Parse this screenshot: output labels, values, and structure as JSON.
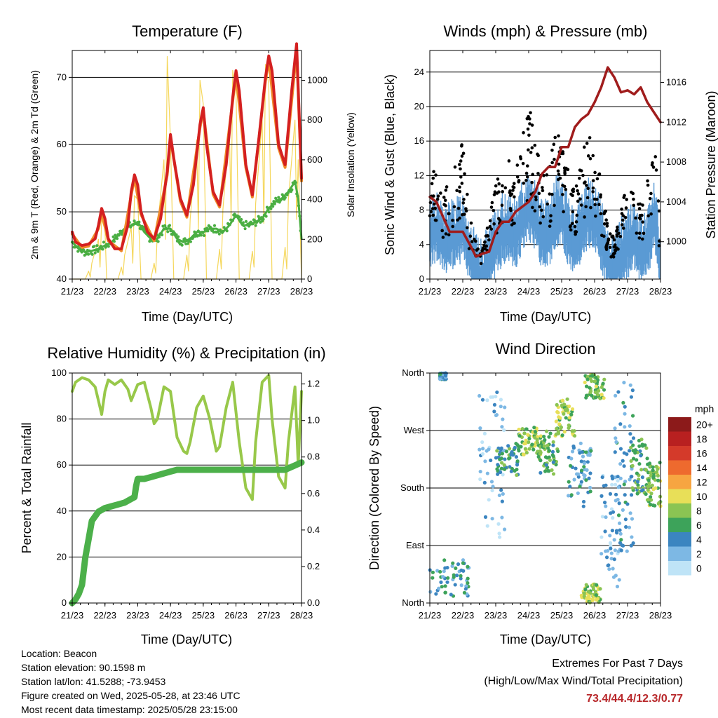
{
  "x_tick_labels": [
    "21/23",
    "22/23",
    "23/23",
    "24/23",
    "25/23",
    "26/23",
    "27/23",
    "28/23"
  ],
  "temperature_panel": {
    "title": "Temperature (F)",
    "xlabel": "Time (Day/UTC)",
    "ylabel_left": "2m & 9m T (Red, Orange) & 2m Td (Green)",
    "ylabel_right": "Solar Insolation (Yellow)"
  },
  "winds_panel": {
    "title": "Winds (mph) & Pressure (mb)",
    "xlabel": "Time (Day/UTC)",
    "ylabel_left": "Sonic Wind & Gust (Blue, Black)",
    "ylabel_right": "Station Pressure (Maroon)"
  },
  "rh_panel": {
    "title": "Relative Humidity (%) & Precipitation (in)",
    "xlabel": "Time (Day/UTC)",
    "ylabel_left": "Percent & Total Rainfall"
  },
  "direction_panel": {
    "title": "Wind Direction",
    "xlabel": "Time (Day/UTC)",
    "ylabel_left": "Direction (Colored By Speed)",
    "legend_title": "mph"
  },
  "info": {
    "location": "Location: Beacon",
    "elevation": "Station elevation: 90.1598 m",
    "latlon": "Station lat/lon: 41.5288; -73.9453",
    "created": "Figure created on Wed, 2025-05-28, at 23:46 UTC",
    "recent": "Most recent data timestamp: 2025/05/28 23:15:00"
  },
  "extremes": {
    "line1": "Extremes For Past 7 Days",
    "line2": "(High/Low/Max Wind/Total Precipitation)",
    "values": "73.4/44.4/12.3/0.77"
  },
  "colors": {
    "temp_2m": "#d42020",
    "temp_9m": "#f08a2a",
    "dewpoint": "#4aae42",
    "solar": "#f5d75c",
    "wind": "#5a9ad4",
    "gust": "#000000",
    "pressure": "#a01c1c",
    "rh": "#98c84a",
    "rain": "#4cb04a"
  },
  "chart_data": [
    {
      "id": "temperature",
      "type": "line",
      "x_unit": "day since 21/23",
      "xlim": [
        0,
        7
      ],
      "ylim": [
        40,
        74
      ],
      "yticks": [
        40,
        50,
        60,
        70
      ],
      "y2lim": [
        0,
        1150
      ],
      "y2ticks": [
        0,
        200,
        400,
        600,
        800,
        1000
      ],
      "series": [
        {
          "key": "t2m",
          "x": [
            0,
            0.1,
            0.3,
            0.5,
            0.7,
            0.8,
            0.9,
            1.0,
            1.1,
            1.3,
            1.5,
            1.7,
            1.8,
            1.9,
            2.0,
            2.1,
            2.3,
            2.5,
            2.7,
            2.9,
            3.0,
            3.1,
            3.3,
            3.5,
            3.7,
            3.9,
            4.0,
            4.1,
            4.3,
            4.5,
            4.7,
            4.9,
            5.0,
            5.1,
            5.3,
            5.5,
            5.7,
            5.9,
            6.0,
            6.1,
            6.3,
            6.5,
            6.7,
            6.85,
            7.0
          ],
          "y": [
            47,
            45.5,
            45,
            45.2,
            46,
            48,
            50.5,
            49,
            46,
            44.5,
            44.5,
            48,
            53,
            55.5,
            54,
            50,
            47,
            46,
            49,
            56,
            61.5,
            58,
            52,
            49.5,
            54,
            63,
            65.5,
            60,
            53,
            51,
            57,
            67,
            71,
            68,
            57,
            52.5,
            61,
            70,
            73.2,
            71,
            60,
            57,
            68,
            75,
            55
          ]
        },
        {
          "key": "t9m",
          "x": [
            0,
            0.3,
            0.5,
            0.8,
            0.9,
            1.1,
            1.5,
            1.8,
            1.9,
            2.1,
            2.5,
            2.9,
            3.0,
            3.3,
            3.5,
            3.9,
            4.0,
            4.3,
            4.5,
            4.9,
            5.0,
            5.3,
            5.5,
            5.9,
            6.0,
            6.3,
            6.5,
            6.85,
            7.0
          ],
          "y": [
            46.7,
            44.7,
            44.9,
            47.5,
            50,
            45.7,
            44.2,
            52.5,
            55,
            49.6,
            45.7,
            55.5,
            61,
            51.6,
            49.2,
            62.5,
            65,
            52.6,
            50.7,
            66.5,
            70.5,
            56.6,
            52.2,
            69.5,
            72.6,
            59.5,
            56.6,
            74,
            54.6
          ]
        },
        {
          "key": "td",
          "x": [
            0,
            0.2,
            0.4,
            0.6,
            0.8,
            1.0,
            1.2,
            1.4,
            1.6,
            1.8,
            2.0,
            2.2,
            2.4,
            2.6,
            2.8,
            3.0,
            3.2,
            3.4,
            3.6,
            3.8,
            4.0,
            4.2,
            4.4,
            4.6,
            4.8,
            5.0,
            5.2,
            5.4,
            5.6,
            5.8,
            6.0,
            6.2,
            6.4,
            6.6,
            6.8,
            6.9,
            7.0
          ],
          "y": [
            45.5,
            44.5,
            44,
            44.2,
            44.5,
            45,
            45.5,
            46.5,
            47.5,
            48,
            48.5,
            47,
            46,
            46,
            47.5,
            47.5,
            46,
            45.5,
            46,
            47,
            47,
            47.5,
            47.5,
            47,
            48,
            49.5,
            48,
            48,
            48.5,
            49,
            50.5,
            51.5,
            52,
            53,
            54.5,
            52,
            46
          ]
        },
        {
          "key": "solar",
          "x": [
            0,
            0.4,
            0.5,
            0.55,
            0.6,
            0.8,
            0.85,
            0.9,
            1.0,
            1.05,
            1.4,
            1.5,
            1.55,
            1.6,
            1.8,
            1.85,
            1.9,
            2.0,
            2.1,
            2.4,
            2.5,
            2.55,
            2.6,
            2.8,
            2.85,
            2.9,
            3.0,
            3.1,
            3.4,
            3.5,
            3.55,
            3.6,
            3.8,
            3.85,
            3.9,
            4.0,
            4.1,
            4.4,
            4.5,
            4.55,
            4.6,
            4.8,
            4.85,
            4.9,
            5.0,
            5.1,
            5.4,
            5.5,
            5.55,
            5.6,
            5.8,
            5.85,
            5.9,
            6.0,
            6.1,
            6.4,
            6.5,
            6.55,
            6.6,
            6.8,
            6.85,
            6.9,
            7.0
          ],
          "y": [
            0,
            0,
            40,
            10,
            80,
            200,
            60,
            300,
            250,
            0,
            0,
            60,
            20,
            120,
            260,
            80,
            420,
            400,
            0,
            0,
            80,
            30,
            250,
            600,
            200,
            1120,
            700,
            0,
            0,
            120,
            40,
            300,
            700,
            250,
            1000,
            880,
            0,
            0,
            150,
            50,
            350,
            750,
            300,
            1050,
            950,
            0,
            0,
            140,
            60,
            380,
            800,
            280,
            1080,
            980,
            0,
            0,
            160,
            50,
            400,
            800,
            300,
            600,
            0
          ]
        }
      ]
    },
    {
      "id": "winds_pressure",
      "type": "line",
      "x_unit": "day since 21/23",
      "xlim": [
        0,
        7
      ],
      "ylim": [
        0,
        26.5
      ],
      "yticks": [
        0,
        4,
        8,
        12,
        16,
        20,
        24
      ],
      "y2lim": [
        996.25,
        1019.2
      ],
      "y2ticks": [
        1000,
        1004,
        1008,
        1012,
        1016
      ],
      "series": [
        {
          "key": "wind",
          "x": [
            0,
            0.2,
            0.4,
            0.6,
            0.8,
            1.0,
            1.2,
            1.4,
            1.5,
            1.6,
            1.8,
            2.0,
            2.2,
            2.4,
            2.6,
            2.8,
            3.0,
            3.2,
            3.4,
            3.6,
            3.8,
            4.0,
            4.2,
            4.4,
            4.6,
            4.8,
            5.0,
            5.2,
            5.4,
            5.6,
            5.8,
            6.0,
            6.2,
            6.4,
            6.6,
            6.8,
            6.9,
            7.0
          ],
          "y": [
            6,
            7,
            5,
            6,
            6,
            7,
            4,
            2,
            1,
            1.5,
            3,
            5,
            6.5,
            7,
            6,
            8,
            9.5,
            8,
            6,
            6,
            8.5,
            9,
            6,
            5,
            7,
            8.5,
            8,
            6,
            3,
            2,
            4,
            5,
            6,
            4,
            5,
            8,
            6,
            2
          ]
        },
        {
          "key": "gust",
          "x": [
            0,
            0.2,
            0.4,
            0.6,
            0.8,
            1.0,
            1.2,
            1.4,
            1.5,
            1.6,
            1.8,
            2.0,
            2.2,
            2.4,
            2.6,
            2.8,
            3.0,
            3.2,
            3.4,
            3.6,
            3.8,
            4.0,
            4.2,
            4.4,
            4.6,
            4.8,
            5.0,
            5.2,
            5.4,
            5.6,
            5.8,
            6.0,
            6.2,
            6.4,
            6.6,
            6.8,
            6.9,
            7.0
          ],
          "y": [
            12,
            10,
            8,
            9,
            12,
            13,
            6,
            4,
            2,
            3,
            6,
            9,
            10,
            12,
            10,
            13,
            16,
            14,
            10,
            10,
            14,
            15,
            10,
            8,
            11,
            14,
            12,
            9,
            5,
            4,
            7,
            9,
            10,
            7,
            9,
            14,
            10,
            4
          ]
        },
        {
          "key": "pressure",
          "x": [
            0,
            0.2,
            0.4,
            0.6,
            0.8,
            1.0,
            1.2,
            1.4,
            1.6,
            1.8,
            2.0,
            2.2,
            2.4,
            2.6,
            2.8,
            3.0,
            3.2,
            3.4,
            3.6,
            3.8,
            4.0,
            4.2,
            4.4,
            4.6,
            4.8,
            5.0,
            5.2,
            5.4,
            5.6,
            5.8,
            6.0,
            6.2,
            6.4,
            6.6,
            6.8,
            7.0
          ],
          "y": [
            1004.5,
            1004,
            1002.5,
            1001,
            1001,
            1001,
            999.8,
            998.5,
            998.8,
            999,
            1001,
            1002,
            1002,
            1003,
            1003.5,
            1004,
            1005,
            1006.8,
            1007.5,
            1007.5,
            1009.5,
            1009.5,
            1011.5,
            1012.3,
            1012.8,
            1014,
            1015.5,
            1017.5,
            1016.5,
            1015,
            1015.2,
            1014.8,
            1015.5,
            1014,
            1013,
            1012
          ]
        }
      ]
    },
    {
      "id": "humidity_precip",
      "type": "line",
      "x_unit": "day since 21/23",
      "xlim": [
        0,
        7
      ],
      "ylim": [
        0,
        100
      ],
      "yticks": [
        0,
        20,
        40,
        60,
        80,
        100
      ],
      "y2lim": [
        0,
        1.26
      ],
      "y2ticks": [
        0.0,
        0.2,
        0.4,
        0.6,
        0.8,
        1.0,
        1.2
      ],
      "series": [
        {
          "key": "rh",
          "x": [
            0,
            0.1,
            0.3,
            0.5,
            0.7,
            0.8,
            0.9,
            1.0,
            1.1,
            1.3,
            1.5,
            1.7,
            1.8,
            2.0,
            2.2,
            2.4,
            2.5,
            2.6,
            2.8,
            3.0,
            3.2,
            3.4,
            3.5,
            3.6,
            3.8,
            4.0,
            4.2,
            4.4,
            4.5,
            4.7,
            4.9,
            5.1,
            5.3,
            5.5,
            5.6,
            5.8,
            6.0,
            6.1,
            6.3,
            6.5,
            6.6,
            6.8,
            6.9,
            7.0
          ],
          "y": [
            92,
            96,
            98,
            97,
            94,
            88,
            82,
            92,
            97,
            95,
            97,
            93,
            88,
            95,
            96,
            85,
            78,
            80,
            94,
            92,
            72,
            66,
            65,
            70,
            85,
            90,
            80,
            66,
            68,
            85,
            96,
            70,
            50,
            45,
            70,
            96,
            99,
            80,
            55,
            50,
            70,
            94,
            60,
            92
          ]
        },
        {
          "key": "precip",
          "x": [
            0,
            0.1,
            0.2,
            0.3,
            0.4,
            0.5,
            0.6,
            0.8,
            1.0,
            1.2,
            1.4,
            1.6,
            1.7,
            1.8,
            1.9,
            1.95,
            2.0,
            2.2,
            2.4,
            2.6,
            2.8,
            3.0,
            3.2,
            3.4,
            3.6,
            3.8,
            4.0,
            4.5,
            5.0,
            5.5,
            6.0,
            6.5,
            7.0
          ],
          "y": [
            0,
            0.02,
            0.05,
            0.1,
            0.25,
            0.35,
            0.45,
            0.5,
            0.52,
            0.53,
            0.54,
            0.55,
            0.56,
            0.57,
            0.58,
            0.64,
            0.68,
            0.68,
            0.69,
            0.7,
            0.71,
            0.72,
            0.73,
            0.73,
            0.73,
            0.73,
            0.73,
            0.73,
            0.73,
            0.73,
            0.73,
            0.73,
            0.77
          ]
        }
      ]
    },
    {
      "id": "wind_direction",
      "type": "scatter",
      "x_unit": "day since 21/23",
      "xlim": [
        0,
        7
      ],
      "ylim": [
        0,
        360
      ],
      "ytick_values": [
        0,
        90,
        180,
        270,
        360
      ],
      "ytick_labels": [
        "North",
        "East",
        "South",
        "West",
        "North"
      ],
      "legend_labels": [
        "20+",
        "18",
        "16",
        "14",
        "12",
        "10",
        "8",
        "6",
        "4",
        "2",
        "0"
      ],
      "legend_colors": [
        "#8c1a1a",
        "#b82020",
        "#d43a2a",
        "#ee6a2e",
        "#f7a541",
        "#e8df58",
        "#8bc453",
        "#3da35a",
        "#3b85c0",
        "#7db8e4",
        "#bfe4f7"
      ],
      "clusters": [
        {
          "x0": 0.0,
          "x1": 1.2,
          "d0": 10,
          "d1": 70,
          "speed": 4
        },
        {
          "x0": 0.3,
          "x1": 0.5,
          "d0": 350,
          "d1": 360,
          "speed": 3
        },
        {
          "x0": 1.5,
          "x1": 2.3,
          "d0": 100,
          "d1": 330,
          "speed": 1
        },
        {
          "x0": 2.0,
          "x1": 2.8,
          "d0": 200,
          "d1": 250,
          "speed": 5
        },
        {
          "x0": 2.7,
          "x1": 3.4,
          "d0": 230,
          "d1": 275,
          "speed": 8
        },
        {
          "x0": 3.3,
          "x1": 3.9,
          "d0": 200,
          "d1": 270,
          "speed": 6
        },
        {
          "x0": 3.8,
          "x1": 4.4,
          "d0": 260,
          "d1": 320,
          "speed": 8
        },
        {
          "x0": 4.2,
          "x1": 4.9,
          "d0": 150,
          "d1": 250,
          "speed": 3
        },
        {
          "x0": 4.7,
          "x1": 5.3,
          "d0": 320,
          "d1": 360,
          "speed": 7
        },
        {
          "x0": 4.6,
          "x1": 5.2,
          "d0": 0,
          "d1": 30,
          "speed": 8
        },
        {
          "x0": 5.2,
          "x1": 5.8,
          "d0": 20,
          "d1": 200,
          "speed": 2
        },
        {
          "x0": 5.6,
          "x1": 6.2,
          "d0": 80,
          "d1": 360,
          "speed": 3
        },
        {
          "x0": 6.1,
          "x1": 6.6,
          "d0": 170,
          "d1": 260,
          "speed": 6
        },
        {
          "x0": 6.6,
          "x1": 7.0,
          "d0": 150,
          "d1": 220,
          "speed": 7
        }
      ]
    }
  ]
}
